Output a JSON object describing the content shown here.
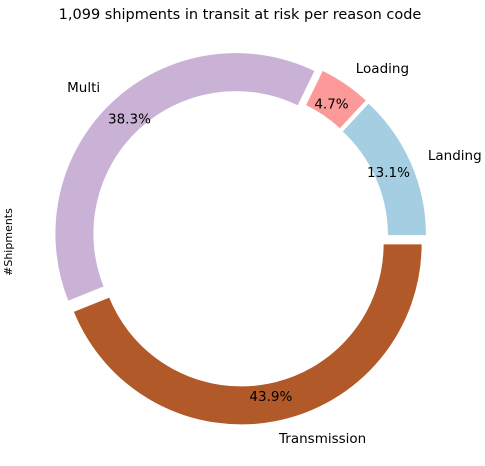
{
  "chart_data": {
    "type": "pie",
    "variant": "donut",
    "title": "1,099 shipments in transit at risk per reason code",
    "ylabel": "#Shipments",
    "slices": [
      {
        "label": "Landing",
        "value": 13.1,
        "pct_label": "13.1%",
        "color": "#a6cee3"
      },
      {
        "label": "Loading",
        "value": 4.7,
        "pct_label": "4.7%",
        "color": "#fb9a99"
      },
      {
        "label": "Multi",
        "value": 38.3,
        "pct_label": "38.3%",
        "color": "#cab2d6"
      },
      {
        "label": "Transmission",
        "value": 43.9,
        "pct_label": "43.9%",
        "color": "#b15928"
      }
    ],
    "start_angle_deg": 0,
    "direction": "counterclockwise",
    "exploded": true
  }
}
